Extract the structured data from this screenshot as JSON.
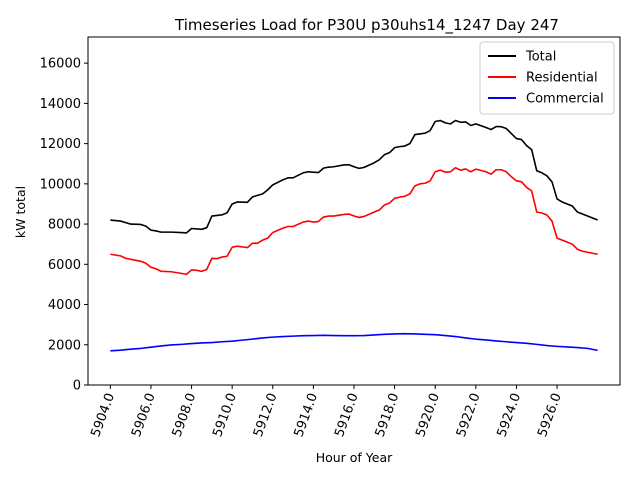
{
  "chart_data": {
    "type": "line",
    "title": "Timeseries Load for P30U p30uhs14_1247  Day 247",
    "xlabel": "Hour of Year",
    "ylabel": "kW total",
    "xlim": [
      5902.9,
      5929.1
    ],
    "ylim": [
      0,
      17300
    ],
    "x_ticks": [
      5904,
      5906,
      5908,
      5910,
      5912,
      5914,
      5916,
      5918,
      5920,
      5922,
      5924,
      5926
    ],
    "x_tick_labels": [
      "5904.0",
      "5906.0",
      "5908.0",
      "5910.0",
      "5912.0",
      "5914.0",
      "5916.0",
      "5918.0",
      "5920.0",
      "5922.0",
      "5924.0",
      "5926.0"
    ],
    "y_ticks": [
      0,
      2000,
      4000,
      6000,
      8000,
      10000,
      12000,
      14000,
      16000
    ],
    "y_tick_labels": [
      "0",
      "2000",
      "4000",
      "6000",
      "8000",
      "10000",
      "12000",
      "14000",
      "16000"
    ],
    "legend_position": "top-right",
    "series": [
      {
        "name": "Total",
        "color": "#000000",
        "points": [
          [
            5904,
            8200
          ],
          [
            5904.5,
            8150
          ],
          [
            5905,
            8000
          ],
          [
            5905.5,
            7980
          ],
          [
            5905.75,
            7900
          ],
          [
            5906,
            7700
          ],
          [
            5906.25,
            7660
          ],
          [
            5906.5,
            7600
          ],
          [
            5907,
            7600
          ],
          [
            5907.5,
            7580
          ],
          [
            5907.75,
            7560
          ],
          [
            5908,
            7780
          ],
          [
            5908.5,
            7740
          ],
          [
            5908.75,
            7820
          ],
          [
            5909,
            8400
          ],
          [
            5909.5,
            8460
          ],
          [
            5909.75,
            8560
          ],
          [
            5910,
            9000
          ],
          [
            5910.25,
            9100
          ],
          [
            5910.75,
            9080
          ],
          [
            5911,
            9350
          ],
          [
            5911.5,
            9500
          ],
          [
            5911.75,
            9700
          ],
          [
            5912,
            9950
          ],
          [
            5912.5,
            10200
          ],
          [
            5912.75,
            10300
          ],
          [
            5913,
            10300
          ],
          [
            5913.5,
            10550
          ],
          [
            5913.75,
            10600
          ],
          [
            5914,
            10580
          ],
          [
            5914.25,
            10560
          ],
          [
            5914.5,
            10780
          ],
          [
            5914.75,
            10830
          ],
          [
            5915,
            10850
          ],
          [
            5915.5,
            10940
          ],
          [
            5915.75,
            10950
          ],
          [
            5916,
            10850
          ],
          [
            5916.25,
            10770
          ],
          [
            5916.5,
            10820
          ],
          [
            5917,
            11050
          ],
          [
            5917.25,
            11200
          ],
          [
            5917.5,
            11450
          ],
          [
            5917.75,
            11550
          ],
          [
            5918,
            11800
          ],
          [
            5918.25,
            11850
          ],
          [
            5918.5,
            11880
          ],
          [
            5918.75,
            12000
          ],
          [
            5919,
            12450
          ],
          [
            5919.5,
            12520
          ],
          [
            5919.75,
            12650
          ],
          [
            5920,
            13100
          ],
          [
            5920.25,
            13150
          ],
          [
            5920.5,
            13030
          ],
          [
            5920.75,
            12980
          ],
          [
            5921,
            13150
          ],
          [
            5921.25,
            13060
          ],
          [
            5921.5,
            13080
          ],
          [
            5921.75,
            12900
          ],
          [
            5922,
            12980
          ],
          [
            5922.5,
            12800
          ],
          [
            5922.75,
            12700
          ],
          [
            5923,
            12850
          ],
          [
            5923.25,
            12840
          ],
          [
            5923.5,
            12750
          ],
          [
            5923.75,
            12500
          ],
          [
            5924,
            12250
          ],
          [
            5924.25,
            12200
          ],
          [
            5924.5,
            11900
          ],
          [
            5924.75,
            11700
          ],
          [
            5925,
            10650
          ],
          [
            5925.25,
            10550
          ],
          [
            5925.5,
            10400
          ],
          [
            5925.75,
            10100
          ],
          [
            5926,
            9250
          ],
          [
            5926.25,
            9100
          ],
          [
            5926.5,
            9000
          ],
          [
            5926.75,
            8900
          ],
          [
            5927,
            8600
          ],
          [
            5927.25,
            8500
          ],
          [
            5927.5,
            8400
          ],
          [
            5927.75,
            8300
          ],
          [
            5928,
            8200
          ]
        ]
      },
      {
        "name": "Residential",
        "color": "#ff0000",
        "points": [
          [
            5904,
            6500
          ],
          [
            5904.5,
            6420
          ],
          [
            5904.75,
            6300
          ],
          [
            5905,
            6250
          ],
          [
            5905.5,
            6150
          ],
          [
            5905.75,
            6050
          ],
          [
            5906,
            5850
          ],
          [
            5906.25,
            5780
          ],
          [
            5906.5,
            5650
          ],
          [
            5907,
            5630
          ],
          [
            5907.5,
            5550
          ],
          [
            5907.75,
            5500
          ],
          [
            5908,
            5720
          ],
          [
            5908.25,
            5700
          ],
          [
            5908.5,
            5650
          ],
          [
            5908.75,
            5750
          ],
          [
            5909,
            6300
          ],
          [
            5909.25,
            6280
          ],
          [
            5909.5,
            6360
          ],
          [
            5909.75,
            6400
          ],
          [
            5910,
            6850
          ],
          [
            5910.25,
            6900
          ],
          [
            5910.75,
            6830
          ],
          [
            5911,
            7050
          ],
          [
            5911.25,
            7050
          ],
          [
            5911.5,
            7200
          ],
          [
            5911.75,
            7300
          ],
          [
            5912,
            7580
          ],
          [
            5912.5,
            7800
          ],
          [
            5912.75,
            7880
          ],
          [
            5913,
            7880
          ],
          [
            5913.5,
            8100
          ],
          [
            5913.75,
            8150
          ],
          [
            5914,
            8100
          ],
          [
            5914.25,
            8130
          ],
          [
            5914.5,
            8350
          ],
          [
            5914.75,
            8400
          ],
          [
            5915,
            8400
          ],
          [
            5915.5,
            8480
          ],
          [
            5915.75,
            8500
          ],
          [
            5916,
            8400
          ],
          [
            5916.25,
            8330
          ],
          [
            5916.5,
            8380
          ],
          [
            5917,
            8600
          ],
          [
            5917.25,
            8700
          ],
          [
            5917.5,
            8950
          ],
          [
            5917.75,
            9050
          ],
          [
            5918,
            9280
          ],
          [
            5918.25,
            9340
          ],
          [
            5918.5,
            9380
          ],
          [
            5918.75,
            9500
          ],
          [
            5919,
            9900
          ],
          [
            5919.25,
            10000
          ],
          [
            5919.5,
            10030
          ],
          [
            5919.75,
            10150
          ],
          [
            5920,
            10600
          ],
          [
            5920.25,
            10680
          ],
          [
            5920.5,
            10580
          ],
          [
            5920.75,
            10600
          ],
          [
            5921,
            10800
          ],
          [
            5921.25,
            10680
          ],
          [
            5921.5,
            10740
          ],
          [
            5921.75,
            10600
          ],
          [
            5922,
            10730
          ],
          [
            5922.5,
            10600
          ],
          [
            5922.75,
            10480
          ],
          [
            5923,
            10700
          ],
          [
            5923.25,
            10700
          ],
          [
            5923.5,
            10600
          ],
          [
            5923.75,
            10350
          ],
          [
            5924,
            10150
          ],
          [
            5924.25,
            10100
          ],
          [
            5924.5,
            9820
          ],
          [
            5924.75,
            9650
          ],
          [
            5925,
            8600
          ],
          [
            5925.25,
            8550
          ],
          [
            5925.5,
            8450
          ],
          [
            5925.75,
            8150
          ],
          [
            5926,
            7300
          ],
          [
            5926.25,
            7200
          ],
          [
            5926.5,
            7100
          ],
          [
            5926.75,
            7000
          ],
          [
            5927,
            6750
          ],
          [
            5927.25,
            6650
          ],
          [
            5927.5,
            6600
          ],
          [
            5927.75,
            6550
          ],
          [
            5928,
            6500
          ]
        ]
      },
      {
        "name": "Commercial",
        "color": "#0000ff",
        "points": [
          [
            5904,
            1700
          ],
          [
            5904.5,
            1730
          ],
          [
            5905,
            1780
          ],
          [
            5905.5,
            1820
          ],
          [
            5906,
            1880
          ],
          [
            5906.5,
            1940
          ],
          [
            5907,
            1990
          ],
          [
            5907.5,
            2020
          ],
          [
            5908,
            2060
          ],
          [
            5908.5,
            2090
          ],
          [
            5909,
            2110
          ],
          [
            5909.5,
            2150
          ],
          [
            5910,
            2180
          ],
          [
            5910.5,
            2230
          ],
          [
            5911,
            2280
          ],
          [
            5911.5,
            2340
          ],
          [
            5912,
            2380
          ],
          [
            5912.5,
            2410
          ],
          [
            5913,
            2430
          ],
          [
            5913.5,
            2450
          ],
          [
            5914,
            2460
          ],
          [
            5914.5,
            2470
          ],
          [
            5915,
            2460
          ],
          [
            5915.5,
            2450
          ],
          [
            5916,
            2450
          ],
          [
            5916.5,
            2460
          ],
          [
            5917,
            2490
          ],
          [
            5917.5,
            2520
          ],
          [
            5918,
            2540
          ],
          [
            5918.5,
            2550
          ],
          [
            5919,
            2540
          ],
          [
            5919.5,
            2520
          ],
          [
            5920,
            2500
          ],
          [
            5920.5,
            2460
          ],
          [
            5921,
            2410
          ],
          [
            5921.5,
            2340
          ],
          [
            5922,
            2280
          ],
          [
            5922.5,
            2240
          ],
          [
            5923,
            2190
          ],
          [
            5923.5,
            2150
          ],
          [
            5924,
            2110
          ],
          [
            5924.5,
            2070
          ],
          [
            5925,
            2020
          ],
          [
            5925.5,
            1960
          ],
          [
            5926,
            1920
          ],
          [
            5926.5,
            1890
          ],
          [
            5927,
            1860
          ],
          [
            5927.5,
            1820
          ],
          [
            5928,
            1720
          ]
        ]
      }
    ]
  }
}
